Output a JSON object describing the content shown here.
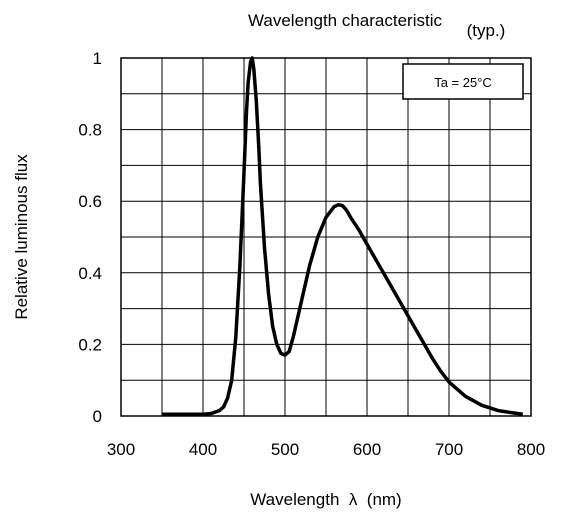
{
  "chart_data": {
    "type": "line",
    "title": "Wavelength characteristic",
    "title_note": "(typ.)",
    "xlabel": "Wavelength  λ  (nm)",
    "ylabel": "Relative luminous flux",
    "annotation": "Ta = 25°C",
    "xlim": [
      300,
      800
    ],
    "ylim": [
      0,
      1
    ],
    "grid": true,
    "x_ticks": [
      "300",
      "400",
      "500",
      "600",
      "700",
      "800"
    ],
    "y_ticks": [
      "0",
      "0.2",
      "0.4",
      "0.6",
      "0.8",
      "1"
    ],
    "series": [
      {
        "line_color": "#000000",
        "x": [
          350,
          380,
          400,
          410,
          420,
          425,
          430,
          435,
          440,
          445,
          450,
          453,
          455,
          458,
          460,
          462,
          465,
          468,
          470,
          475,
          480,
          485,
          490,
          495,
          500,
          505,
          510,
          520,
          530,
          540,
          550,
          560,
          565,
          570,
          575,
          580,
          590,
          600,
          610,
          620,
          630,
          640,
          650,
          660,
          670,
          680,
          690,
          700,
          720,
          740,
          760,
          780,
          790
        ],
        "y": [
          0.005,
          0.005,
          0.005,
          0.007,
          0.015,
          0.025,
          0.05,
          0.1,
          0.22,
          0.42,
          0.68,
          0.85,
          0.93,
          0.99,
          1.0,
          0.97,
          0.88,
          0.75,
          0.65,
          0.47,
          0.34,
          0.25,
          0.2,
          0.175,
          0.17,
          0.18,
          0.22,
          0.32,
          0.42,
          0.5,
          0.555,
          0.585,
          0.59,
          0.588,
          0.575,
          0.555,
          0.52,
          0.48,
          0.44,
          0.4,
          0.36,
          0.32,
          0.28,
          0.24,
          0.2,
          0.16,
          0.125,
          0.095,
          0.055,
          0.03,
          0.015,
          0.008,
          0.005
        ]
      }
    ]
  }
}
